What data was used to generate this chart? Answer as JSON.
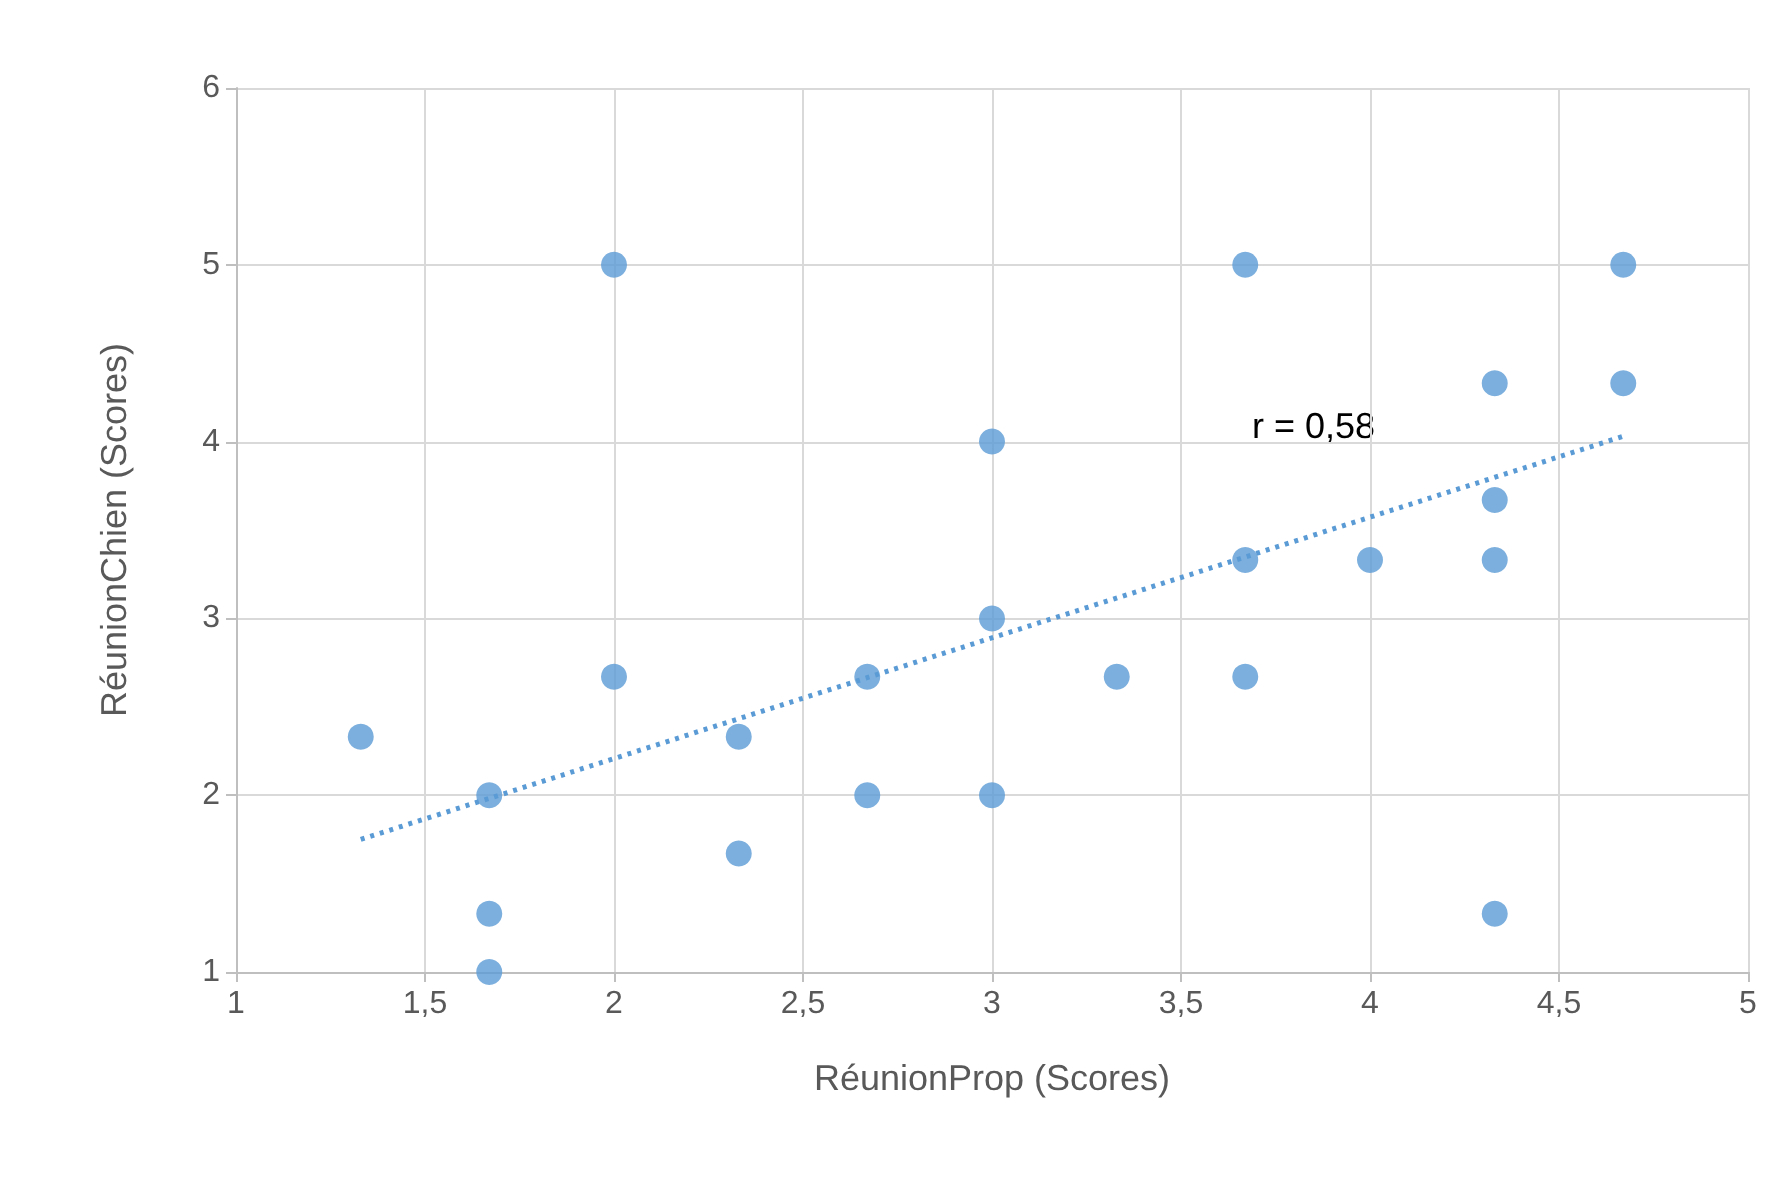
{
  "chart_data": {
    "type": "scatter",
    "xlabel": "RéunionProp (Scores)",
    "ylabel": "RéunionChien (Scores)",
    "annotations": [
      "r = 0,58"
    ],
    "x": [
      1.33,
      1.67,
      1.67,
      1.67,
      2,
      2,
      2.33,
      2.33,
      2.67,
      2.67,
      3,
      3,
      3,
      3.33,
      3.67,
      3.67,
      3.67,
      4,
      4.33,
      4.33,
      4.33,
      4.33,
      4.67,
      4.67
    ],
    "series": [
      {
        "color": "#5b9bd5",
        "values": [
          2.33,
          2,
          1.33,
          1,
          5,
          2.67,
          2.33,
          1.67,
          2.67,
          2,
          4,
          3,
          2,
          2.67,
          5,
          3.33,
          2.67,
          3.33,
          4.33,
          3.67,
          3.33,
          1.33,
          5,
          4.33
        ]
      },
      {
        "type": "line",
        "color": "#5b9bd5",
        "x": [
          1.33,
          4.67
        ],
        "values": [
          1.75,
          4.03
        ],
        "line_style": "dotted",
        "marker": "none"
      }
    ],
    "xlim": [
      1,
      5
    ],
    "xticks": [
      1,
      {
        "value": 1.5,
        "label": "1,5"
      },
      2,
      {
        "value": 2.5,
        "label": "2,5"
      },
      3,
      {
        "value": 3.5,
        "label": "3,5"
      },
      4,
      {
        "value": 4.5,
        "label": "4,5"
      },
      5
    ],
    "ylim": [
      1,
      6
    ],
    "yticks": [
      1,
      2,
      3,
      4,
      5,
      6
    ],
    "grid": true,
    "marker": "circle"
  }
}
